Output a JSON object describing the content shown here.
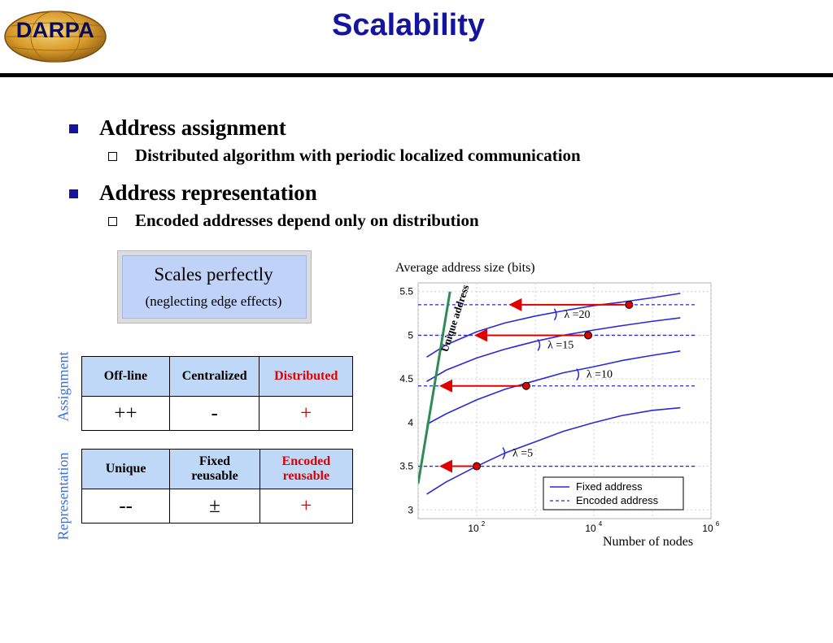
{
  "logo": {
    "text": "DARPA"
  },
  "title": "Scalability",
  "bullets": [
    {
      "text": "Address assignment",
      "sub": [
        "Distributed algorithm with periodic localized communication"
      ]
    },
    {
      "text": "Address representation",
      "sub": [
        "Encoded addresses depend only on distribution"
      ]
    }
  ],
  "callout": {
    "main": "Scales perfectly",
    "sub": "(neglecting edge effects)"
  },
  "side_labels": {
    "assignment": "Assignment",
    "representation": "Representation"
  },
  "assignment_table": {
    "headers": [
      "Off-line",
      "Centralized",
      "Distributed"
    ],
    "values": [
      "++",
      "-",
      "+"
    ]
  },
  "representation_table": {
    "headers": [
      "Unique",
      "Fixed\nreusable",
      "Encoded\nreusable"
    ],
    "values": [
      "--",
      "±",
      "+"
    ]
  },
  "colors": {
    "title": "#14149e",
    "accent_red": "#e00000",
    "side_label": "#3a6fd8",
    "header_bg": "#c0d8f8",
    "line_blue": "#2a2ad8",
    "unique_green": "#2e8b57"
  },
  "chart_data": {
    "type": "line",
    "title": "Average address size (bits)",
    "xlabel": "Number of nodes",
    "ylabel": "",
    "x_scale": "log",
    "xlim": [
      10,
      1000000
    ],
    "ylim": [
      2.9,
      5.6
    ],
    "xticks": [
      {
        "label": "10",
        "exp": "2",
        "value": 100
      },
      {
        "label": "10",
        "exp": "4",
        "value": 10000
      },
      {
        "label": "10",
        "exp": "6",
        "value": 1000000
      }
    ],
    "yticks": [
      "3",
      "3.5",
      "4",
      "4.5",
      "5",
      "5.5"
    ],
    "grid": true,
    "legend": {
      "position": "bottom-right",
      "entries": [
        "Fixed address",
        "Encoded address"
      ]
    },
    "series": [
      {
        "name": "Fixed address",
        "lambda_label": "λ =5",
        "x": [
          14,
          30,
          100,
          300,
          1000,
          3000,
          10000,
          30000,
          100000,
          300000
        ],
        "y": [
          3.18,
          3.32,
          3.5,
          3.65,
          3.78,
          3.9,
          4.0,
          4.08,
          4.14,
          4.17
        ]
      },
      {
        "name": "Fixed address",
        "lambda_label": "λ =10",
        "x": [
          14,
          30,
          100,
          300,
          1000,
          3000,
          10000,
          30000,
          100000,
          300000
        ],
        "y": [
          3.98,
          4.1,
          4.26,
          4.38,
          4.48,
          4.57,
          4.64,
          4.71,
          4.77,
          4.82
        ]
      },
      {
        "name": "Fixed address",
        "lambda_label": "λ =15",
        "x": [
          14,
          30,
          100,
          300,
          1000,
          3000,
          10000,
          30000,
          100000,
          300000
        ],
        "y": [
          4.47,
          4.6,
          4.74,
          4.84,
          4.93,
          5.0,
          5.06,
          5.11,
          5.16,
          5.2
        ]
      },
      {
        "name": "Fixed address",
        "lambda_label": "λ =20",
        "x": [
          14,
          30,
          100,
          300,
          1000,
          3000,
          10000,
          30000,
          100000,
          300000
        ],
        "y": [
          4.75,
          4.89,
          5.04,
          5.14,
          5.22,
          5.28,
          5.34,
          5.38,
          5.43,
          5.48
        ]
      }
    ],
    "encoded_levels": [
      {
        "lambda_label": "λ =5",
        "y": 3.5,
        "marker_x": 100
      },
      {
        "lambda_label": "λ =10",
        "y": 4.42,
        "marker_x": 700
      },
      {
        "lambda_label": "λ =15",
        "y": 5.0,
        "marker_x": 8000
      },
      {
        "lambda_label": "λ =20",
        "y": 5.35,
        "marker_x": 40000
      }
    ],
    "unique_line": {
      "label": "Unique address",
      "points": [
        [
          10,
          3.3
        ],
        [
          35,
          5.5
        ]
      ]
    }
  }
}
